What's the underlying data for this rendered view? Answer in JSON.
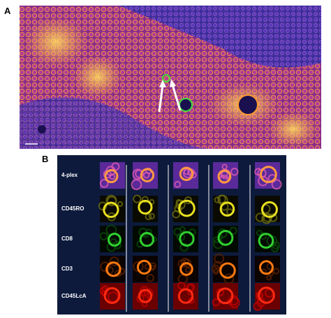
{
  "panel_a": {
    "label": "A"
  },
  "panel_b": {
    "label": "B",
    "rows": [
      "4-plex",
      "CD45RO",
      "CD8",
      "CD3",
      "CD45LcA"
    ]
  }
}
